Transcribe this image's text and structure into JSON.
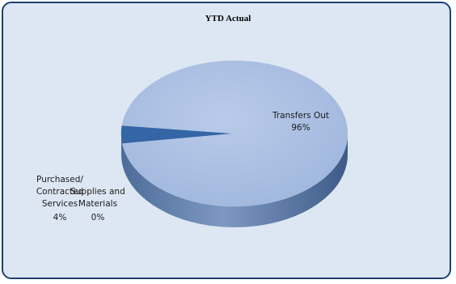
{
  "chart_data": {
    "type": "pie",
    "title": "YTD Actual",
    "three_d": true,
    "slices": [
      {
        "category": "Transfers Out",
        "percent_label": "96%",
        "value": 96,
        "color": "#a9bfe3"
      },
      {
        "category": "Purchased/ Contracted Services",
        "percent_label": "4%",
        "value": 4,
        "color": "#3466a6"
      },
      {
        "category": "Supplies and Materials",
        "percent_label": "0%",
        "value": 0,
        "color": "#7f9fd1"
      }
    ],
    "background_color": "#dde7f3",
    "border_color": "#1f3f74"
  }
}
